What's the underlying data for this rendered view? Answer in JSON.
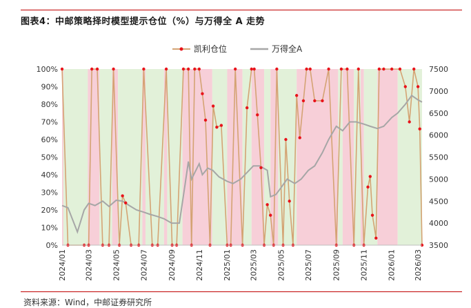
{
  "figure": {
    "caption": "图表4：中邮策略择时模型提示仓位（%）与万得全 A 走势",
    "source": "资料来源：Wind，中邮证券研究所"
  },
  "chart_data": {
    "type": "line",
    "series": [
      {
        "name": "凯利仓位",
        "axis": "left",
        "unit": "%",
        "color": "#d4a373",
        "marker_color": "#e8131a",
        "x": [
          "2024-01-02",
          "2024-01-15",
          "2024-02-20",
          "2024-03-01",
          "2024-03-08",
          "2024-03-20",
          "2024-04-01",
          "2024-04-15",
          "2024-04-25",
          "2024-05-08",
          "2024-05-15",
          "2024-05-22",
          "2024-06-03",
          "2024-06-20",
          "2024-07-01",
          "2024-07-20",
          "2024-08-01",
          "2024-08-20",
          "2024-09-02",
          "2024-09-12",
          "2024-09-27",
          "2024-10-08",
          "2024-10-15",
          "2024-10-22",
          "2024-11-01",
          "2024-11-08",
          "2024-11-15",
          "2024-11-25",
          "2024-12-02",
          "2024-12-10",
          "2024-12-20",
          "2025-01-02",
          "2025-01-10",
          "2025-01-20",
          "2025-02-05",
          "2025-02-15",
          "2025-02-25",
          "2025-03-03",
          "2025-03-10",
          "2025-03-18",
          "2025-03-25",
          "2025-04-01",
          "2025-04-08",
          "2025-04-15",
          "2025-04-22",
          "2025-05-06",
          "2025-05-12",
          "2025-05-20",
          "2025-05-28",
          "2025-06-05",
          "2025-06-12",
          "2025-06-20",
          "2025-06-27",
          "2025-07-05",
          "2025-07-15",
          "2025-08-01",
          "2025-08-15",
          "2025-09-01",
          "2025-09-12",
          "2025-09-25",
          "2025-10-10",
          "2025-10-20",
          "2025-11-01",
          "2025-11-10",
          "2025-11-15",
          "2025-11-20",
          "2025-11-28",
          "2025-12-05",
          "2025-12-15",
          "2026-01-02",
          "2026-01-20",
          "2026-02-01",
          "2026-02-10",
          "2026-02-20",
          "2026-03-01",
          "2026-03-05",
          "2026-03-10"
        ],
        "values": [
          100,
          0,
          0,
          0,
          100,
          100,
          0,
          0,
          100,
          0,
          28,
          24,
          0,
          0,
          100,
          0,
          0,
          100,
          0,
          0,
          100,
          100,
          0,
          100,
          100,
          86,
          71,
          0,
          79,
          67,
          68,
          0,
          0,
          100,
          0,
          78,
          100,
          100,
          74,
          44,
          0,
          23,
          17,
          0,
          100,
          0,
          60,
          25,
          0,
          85,
          61,
          82,
          100,
          100,
          82,
          82,
          100,
          0,
          100,
          100,
          0,
          100,
          0,
          33,
          39,
          17,
          4,
          100,
          100,
          100,
          100,
          90,
          70,
          100,
          90,
          66,
          0
        ]
      },
      {
        "name": "万得全A",
        "axis": "right",
        "color": "#a6a6a6",
        "x": [
          "2024-01-02",
          "2024-01-15",
          "2024-02-05",
          "2024-02-20",
          "2024-03-01",
          "2024-03-15",
          "2024-04-01",
          "2024-04-15",
          "2024-05-01",
          "2024-05-15",
          "2024-05-30",
          "2024-06-15",
          "2024-07-01",
          "2024-07-15",
          "2024-08-01",
          "2024-08-15",
          "2024-09-01",
          "2024-09-18",
          "2024-10-01",
          "2024-10-08",
          "2024-10-15",
          "2024-11-01",
          "2024-11-08",
          "2024-11-20",
          "2024-12-01",
          "2024-12-15",
          "2025-01-02",
          "2025-01-15",
          "2025-02-01",
          "2025-02-15",
          "2025-03-01",
          "2025-03-15",
          "2025-04-01",
          "2025-04-08",
          "2025-04-20",
          "2025-05-01",
          "2025-05-15",
          "2025-06-01",
          "2025-06-15",
          "2025-07-01",
          "2025-07-15",
          "2025-08-01",
          "2025-08-15",
          "2025-09-01",
          "2025-09-15",
          "2025-10-01",
          "2025-10-15",
          "2025-11-01",
          "2025-11-15",
          "2025-12-01",
          "2025-12-15",
          "2026-01-02",
          "2026-01-15",
          "2026-02-01",
          "2026-02-15",
          "2026-03-01",
          "2026-03-10"
        ],
        "values": [
          4400,
          4350,
          3800,
          4300,
          4450,
          4400,
          4500,
          4380,
          4520,
          4500,
          4400,
          4300,
          4250,
          4200,
          4150,
          4100,
          4000,
          4000,
          4900,
          5400,
          5000,
          5350,
          5100,
          5250,
          5200,
          5050,
          4950,
          4900,
          5000,
          5150,
          5300,
          5300,
          5200,
          4600,
          4650,
          4800,
          5000,
          4900,
          5000,
          5200,
          5300,
          5600,
          5900,
          6200,
          6100,
          6300,
          6300,
          6250,
          6200,
          6150,
          6200,
          6400,
          6500,
          6700,
          6900,
          6800,
          6750
        ]
      }
    ],
    "x_ticks": [
      "2024/01",
      "2024/03",
      "2024/05",
      "2024/07",
      "2024/09",
      "2024/11",
      "2025/01",
      "2025/03",
      "2025/05",
      "2025/07",
      "2025/09",
      "2025/11",
      "2026/01",
      "2026/03"
    ],
    "y_left": {
      "ticks": [
        "0%",
        "10%",
        "20%",
        "30%",
        "40%",
        "50%",
        "60%",
        "70%",
        "80%",
        "90%",
        "100%"
      ],
      "range": [
        0,
        100
      ]
    },
    "y_right": {
      "ticks": [
        "3500",
        "4000",
        "4500",
        "5000",
        "5500",
        "6000",
        "6500",
        "7000",
        "7500"
      ],
      "range": [
        3500,
        7500
      ]
    },
    "regions": [
      {
        "start": "2024-01-02",
        "end": "2024-01-05",
        "state": "red"
      },
      {
        "start": "2024-01-05",
        "end": "2024-02-28",
        "state": "green"
      },
      {
        "start": "2024-02-28",
        "end": "2024-03-25",
        "state": "red"
      },
      {
        "start": "2024-03-25",
        "end": "2024-04-22",
        "state": "green"
      },
      {
        "start": "2024-04-22",
        "end": "2024-05-05",
        "state": "red"
      },
      {
        "start": "2024-05-05",
        "end": "2024-06-28",
        "state": "green"
      },
      {
        "start": "2024-06-28",
        "end": "2024-07-05",
        "state": "red"
      },
      {
        "start": "2024-07-05",
        "end": "2024-08-15",
        "state": "green"
      },
      {
        "start": "2024-08-15",
        "end": "2024-08-22",
        "state": "red"
      },
      {
        "start": "2024-08-22",
        "end": "2024-09-25",
        "state": "green"
      },
      {
        "start": "2024-09-25",
        "end": "2024-11-30",
        "state": "red"
      },
      {
        "start": "2024-11-30",
        "end": "2025-01-02",
        "state": "green"
      },
      {
        "start": "2025-01-02",
        "end": "2025-02-05",
        "state": "red"
      },
      {
        "start": "2025-02-05",
        "end": "2025-02-25",
        "state": "green"
      },
      {
        "start": "2025-02-25",
        "end": "2025-03-25",
        "state": "red"
      },
      {
        "start": "2025-03-25",
        "end": "2025-04-08",
        "state": "green"
      },
      {
        "start": "2025-04-08",
        "end": "2025-04-25",
        "state": "red"
      },
      {
        "start": "2025-04-25",
        "end": "2025-06-05",
        "state": "green"
      },
      {
        "start": "2025-06-05",
        "end": "2025-09-05",
        "state": "red"
      },
      {
        "start": "2025-09-05",
        "end": "2025-09-15",
        "state": "green"
      },
      {
        "start": "2025-09-15",
        "end": "2025-10-10",
        "state": "red"
      },
      {
        "start": "2025-10-10",
        "end": "2025-10-25",
        "state": "green"
      },
      {
        "start": "2025-10-25",
        "end": "2025-11-01",
        "state": "red"
      },
      {
        "start": "2025-11-01",
        "end": "2025-12-01",
        "state": "green"
      },
      {
        "start": "2025-12-01",
        "end": "2026-01-15",
        "state": "red"
      },
      {
        "start": "2026-01-15",
        "end": "2026-03-10",
        "state": "green"
      }
    ],
    "region_colors": {
      "red": "#f7cfd8",
      "green": "#e2f1d9"
    },
    "legend": {
      "position": "top-center"
    },
    "grid": false
  }
}
